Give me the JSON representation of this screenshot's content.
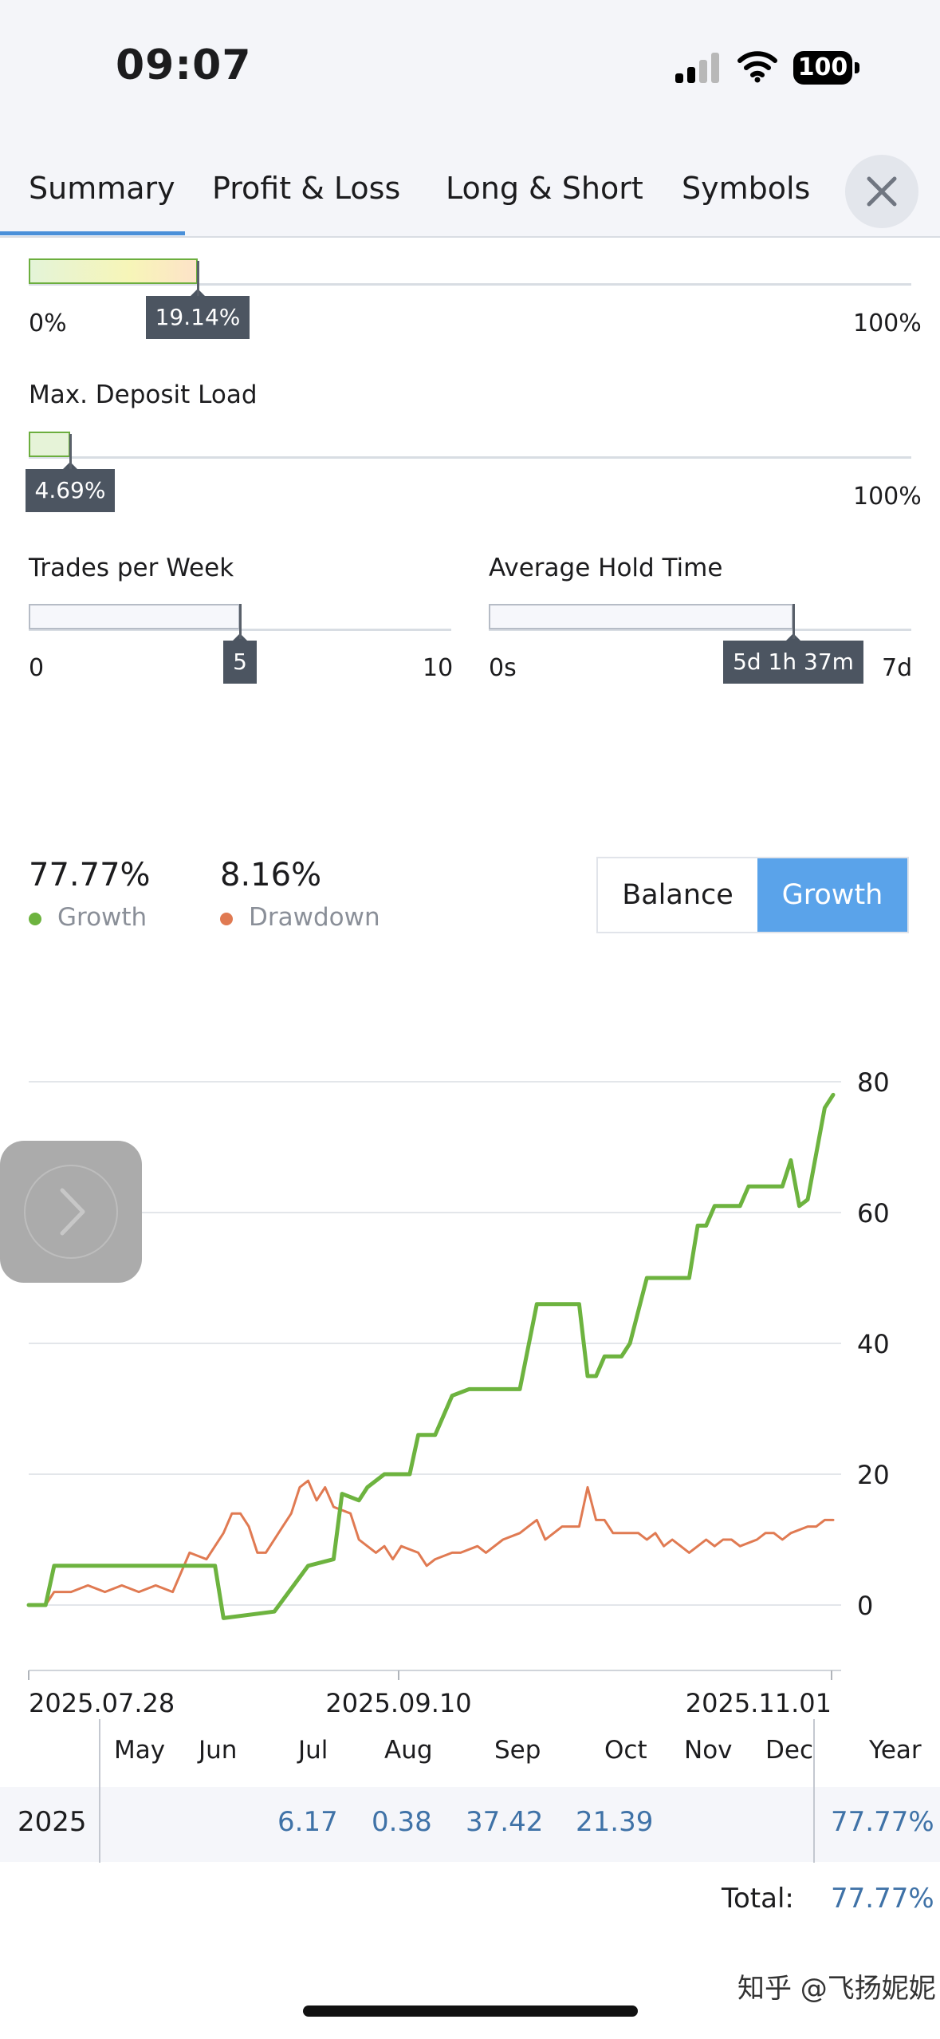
{
  "status_bar": {
    "time": "09:07",
    "battery": "100"
  },
  "tabs": [
    {
      "label": "Summary",
      "active": true
    },
    {
      "label": "Profit & Loss"
    },
    {
      "label": "Long & Short"
    },
    {
      "label": "Symbols"
    }
  ],
  "drawdown_bar": {
    "value_pct": 19.14,
    "tooltip": "19.14%",
    "min": "0%",
    "max": "100%"
  },
  "deposit_load": {
    "title": "Max. Deposit Load",
    "value_pct": 4.69,
    "tooltip": "4.69%",
    "max": "100%"
  },
  "trades_per_week": {
    "title": "Trades per Week",
    "value": 5,
    "tooltip": "5",
    "min": "0",
    "max": "10"
  },
  "hold_time": {
    "title": "Average Hold Time",
    "value_fraction": 0.72,
    "tooltip": "5d 1h 37m",
    "min": "0s",
    "max": "7d"
  },
  "stats": {
    "growth_value": "77.77%",
    "growth_label": "Growth",
    "drawdown_value": "8.16%",
    "drawdown_label": "Drawdown"
  },
  "toggle": {
    "left": "Balance",
    "right": "Growth",
    "selected": "Growth"
  },
  "colors": {
    "growth": "#6db33f",
    "drawdown": "#e07a52",
    "accent": "#5aa3ea",
    "value_blue": "#3f72a7"
  },
  "chart_data": {
    "type": "line",
    "x_ticks": [
      "2025.07.28",
      "2025.09.10",
      "2025.11.01"
    ],
    "y_ticks": [
      "80",
      "60",
      "40",
      "20",
      "0"
    ],
    "ylim": [
      -10,
      80
    ],
    "grid": true,
    "series": [
      {
        "name": "Growth",
        "color": "#6db33f",
        "points": [
          [
            0,
            0
          ],
          [
            2,
            0
          ],
          [
            3,
            6
          ],
          [
            22,
            6
          ],
          [
            23,
            -2
          ],
          [
            29,
            -1
          ],
          [
            33,
            6
          ],
          [
            36,
            7
          ],
          [
            37,
            17
          ],
          [
            39,
            16
          ],
          [
            40,
            18
          ],
          [
            42,
            20
          ],
          [
            45,
            20
          ],
          [
            46,
            26
          ],
          [
            48,
            26
          ],
          [
            50,
            32
          ],
          [
            52,
            33
          ],
          [
            58,
            33
          ],
          [
            60,
            46
          ],
          [
            65,
            46
          ],
          [
            66,
            35
          ],
          [
            67,
            35
          ],
          [
            68,
            38
          ],
          [
            70,
            38
          ],
          [
            71,
            40
          ],
          [
            73,
            50
          ],
          [
            78,
            50
          ],
          [
            79,
            58
          ],
          [
            80,
            58
          ],
          [
            81,
            61
          ],
          [
            84,
            61
          ],
          [
            85,
            64
          ],
          [
            89,
            64
          ],
          [
            90,
            68
          ],
          [
            91,
            61
          ],
          [
            92,
            62
          ],
          [
            94,
            76
          ],
          [
            95,
            78
          ]
        ]
      },
      {
        "name": "Drawdown",
        "color": "#e07a52",
        "points": [
          [
            0,
            0
          ],
          [
            2,
            0
          ],
          [
            3,
            2
          ],
          [
            5,
            2
          ],
          [
            7,
            3
          ],
          [
            9,
            2
          ],
          [
            11,
            3
          ],
          [
            13,
            2
          ],
          [
            15,
            3
          ],
          [
            17,
            2
          ],
          [
            19,
            8
          ],
          [
            21,
            7
          ],
          [
            23,
            11
          ],
          [
            24,
            14
          ],
          [
            25,
            14
          ],
          [
            26,
            12
          ],
          [
            27,
            8
          ],
          [
            28,
            8
          ],
          [
            30,
            12
          ],
          [
            31,
            14
          ],
          [
            32,
            18
          ],
          [
            33,
            19
          ],
          [
            34,
            16
          ],
          [
            35,
            18
          ],
          [
            36,
            15
          ],
          [
            38,
            14
          ],
          [
            39,
            10
          ],
          [
            40,
            9
          ],
          [
            41,
            8
          ],
          [
            42,
            9
          ],
          [
            43,
            7
          ],
          [
            44,
            9
          ],
          [
            46,
            8
          ],
          [
            47,
            6
          ],
          [
            48,
            7
          ],
          [
            50,
            8
          ],
          [
            51,
            8
          ],
          [
            53,
            9
          ],
          [
            54,
            8
          ],
          [
            56,
            10
          ],
          [
            58,
            11
          ],
          [
            59,
            12
          ],
          [
            60,
            13
          ],
          [
            61,
            10
          ],
          [
            62,
            11
          ],
          [
            63,
            12
          ],
          [
            65,
            12
          ],
          [
            66,
            18
          ],
          [
            67,
            13
          ],
          [
            68,
            13
          ],
          [
            69,
            11
          ],
          [
            70,
            11
          ],
          [
            72,
            11
          ],
          [
            73,
            10
          ],
          [
            74,
            11
          ],
          [
            75,
            9
          ],
          [
            76,
            10
          ],
          [
            77,
            9
          ],
          [
            78,
            8
          ],
          [
            79,
            9
          ],
          [
            80,
            10
          ],
          [
            81,
            9
          ],
          [
            82,
            10
          ],
          [
            83,
            10
          ],
          [
            84,
            9
          ],
          [
            86,
            10
          ],
          [
            87,
            11
          ],
          [
            88,
            11
          ],
          [
            89,
            10
          ],
          [
            90,
            11
          ],
          [
            92,
            12
          ],
          [
            93,
            12
          ],
          [
            94,
            13
          ],
          [
            95,
            13
          ]
        ]
      }
    ]
  },
  "monthly": {
    "months": [
      "May",
      "Jun",
      "Jul",
      "Aug",
      "Sep",
      "Oct",
      "Nov",
      "Dec"
    ],
    "year_header": "Year",
    "row_label": "2025",
    "values": [
      "",
      "",
      "6.17",
      "0.38",
      "37.42",
      "21.39",
      "",
      ""
    ],
    "year_value": "77.77%",
    "total_label": "Total:",
    "total_value": "77.77%"
  },
  "watermark": "知乎 @飞扬妮妮"
}
